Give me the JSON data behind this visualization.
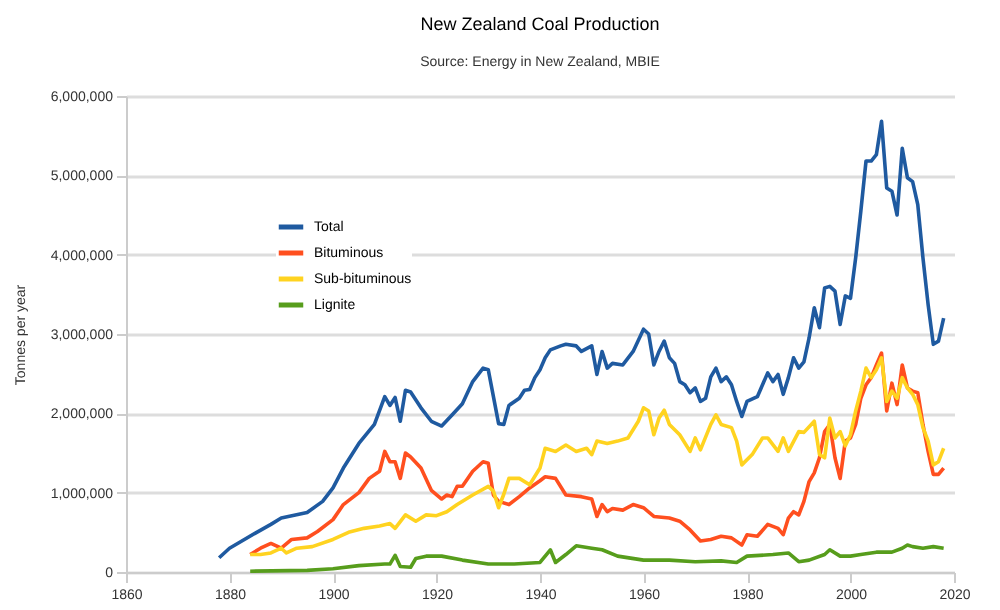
{
  "chart_data": {
    "type": "line",
    "title": "New Zealand Coal Production",
    "subtitle": "Source: Energy in New Zealand, MBIE",
    "ylabel": "Tonnes per year",
    "xlim": [
      1860,
      2020
    ],
    "xticks": [
      1860,
      1880,
      1900,
      1920,
      1940,
      1960,
      1980,
      2000,
      2020
    ],
    "ylim": [
      0,
      6000000
    ],
    "yticks": [
      {
        "value": 0,
        "label": "0"
      },
      {
        "value": 1000000,
        "label": "1,000,000"
      },
      {
        "value": 2000000,
        "label": "2,000,000"
      },
      {
        "value": 3000000,
        "label": "3,000,000"
      },
      {
        "value": 4000000,
        "label": "4,000,000"
      },
      {
        "value": 5000000,
        "label": "5,000,000"
      },
      {
        "value": 6000000,
        "label": "6,000,000"
      }
    ],
    "grid": "y",
    "legend": "left",
    "marker": "none",
    "line_style": "solid",
    "series": [
      {
        "name": "Total",
        "color": "#1f5aa0",
        "x": [
          1878,
          1880,
          1885,
          1888,
          1890,
          1895,
          1898,
          1900,
          1902,
          1905,
          1908,
          1910,
          1911,
          1912,
          1913,
          1914,
          1915,
          1917,
          1919,
          1921,
          1923,
          1925,
          1927,
          1929,
          1930,
          1932,
          1933,
          1934,
          1936,
          1937,
          1938,
          1939,
          1940,
          1941,
          1942,
          1944,
          1945,
          1947,
          1948,
          1950,
          1951,
          1952,
          1953,
          1954,
          1956,
          1958,
          1960,
          1961,
          1962,
          1963,
          1964,
          1965,
          1966,
          1967,
          1968,
          1969,
          1970,
          1971,
          1972,
          1973,
          1974,
          1975,
          1976,
          1977,
          1978,
          1979,
          1980,
          1982,
          1983,
          1984,
          1985,
          1986,
          1987,
          1988,
          1989,
          1990,
          1991,
          1992,
          1993,
          1994,
          1995,
          1996,
          1997,
          1998,
          1999,
          2000,
          2001,
          2002,
          2003,
          2004,
          2005,
          2006,
          2007,
          2008,
          2009,
          2010,
          2011,
          2012,
          2013,
          2014,
          2015,
          2016,
          2017,
          2018
        ],
        "values": [
          180000,
          300000,
          490000,
          600000,
          680000,
          750000,
          890000,
          1060000,
          1310000,
          1620000,
          1860000,
          2210000,
          2100000,
          2200000,
          1900000,
          2290000,
          2270000,
          2070000,
          1900000,
          1840000,
          1980000,
          2120000,
          2400000,
          2570000,
          2550000,
          1870000,
          1860000,
          2100000,
          2190000,
          2290000,
          2300000,
          2450000,
          2550000,
          2700000,
          2800000,
          2850000,
          2870000,
          2850000,
          2780000,
          2850000,
          2490000,
          2780000,
          2570000,
          2630000,
          2610000,
          2780000,
          3060000,
          3000000,
          2610000,
          2780000,
          2910000,
          2700000,
          2630000,
          2400000,
          2360000,
          2260000,
          2320000,
          2150000,
          2190000,
          2460000,
          2570000,
          2400000,
          2460000,
          2360000,
          2150000,
          1960000,
          2150000,
          2210000,
          2360000,
          2510000,
          2400000,
          2490000,
          2240000,
          2450000,
          2700000,
          2570000,
          2650000,
          2950000,
          3330000,
          3080000,
          3580000,
          3600000,
          3540000,
          3120000,
          3480000,
          3450000,
          3960000,
          4550000,
          5180000,
          5180000,
          5260000,
          5680000,
          4840000,
          4800000,
          4500000,
          5340000,
          4970000,
          4920000,
          4630000,
          3960000,
          3370000,
          2870000,
          2910000,
          3200000
        ]
      },
      {
        "name": "Bituminous",
        "color": "#ff4f1f",
        "x": [
          1884,
          1886,
          1888,
          1890,
          1892,
          1895,
          1897,
          1900,
          1902,
          1905,
          1907,
          1909,
          1910,
          1911,
          1912,
          1913,
          1914,
          1915,
          1917,
          1919,
          1921,
          1922,
          1923,
          1924,
          1925,
          1927,
          1929,
          1930,
          1931,
          1932,
          1934,
          1936,
          1938,
          1940,
          1941,
          1943,
          1945,
          1948,
          1950,
          1951,
          1952,
          1953,
          1954,
          1956,
          1958,
          1960,
          1962,
          1965,
          1967,
          1969,
          1971,
          1973,
          1975,
          1977,
          1979,
          1980,
          1982,
          1984,
          1986,
          1987,
          1988,
          1989,
          1990,
          1991,
          1992,
          1993,
          1994,
          1995,
          1996,
          1997,
          1998,
          1999,
          2000,
          2001,
          2002,
          2003,
          2004,
          2005,
          2006,
          2007,
          2008,
          2009,
          2010,
          2011,
          2012,
          2013,
          2014,
          2015,
          2016,
          2017,
          2018
        ],
        "values": [
          220000,
          300000,
          360000,
          300000,
          410000,
          430000,
          510000,
          660000,
          850000,
          1000000,
          1180000,
          1270000,
          1520000,
          1390000,
          1390000,
          1180000,
          1500000,
          1450000,
          1310000,
          1030000,
          920000,
          970000,
          950000,
          1080000,
          1080000,
          1270000,
          1390000,
          1370000,
          970000,
          890000,
          850000,
          950000,
          1060000,
          1150000,
          1200000,
          1180000,
          970000,
          950000,
          920000,
          700000,
          850000,
          760000,
          800000,
          780000,
          850000,
          810000,
          700000,
          680000,
          640000,
          530000,
          390000,
          410000,
          450000,
          430000,
          340000,
          470000,
          450000,
          600000,
          550000,
          470000,
          680000,
          760000,
          720000,
          890000,
          1140000,
          1250000,
          1440000,
          1770000,
          1860000,
          1440000,
          1180000,
          1650000,
          1690000,
          1860000,
          2190000,
          2360000,
          2450000,
          2610000,
          2760000,
          2030000,
          2380000,
          2110000,
          2610000,
          2320000,
          2280000,
          2260000,
          1860000,
          1520000,
          1230000,
          1230000,
          1310000
        ]
      },
      {
        "name": "Sub-bituminous",
        "color": "#ffd320",
        "x": [
          1884,
          1886,
          1888,
          1890,
          1891,
          1893,
          1896,
          1900,
          1903,
          1906,
          1909,
          1911,
          1912,
          1914,
          1916,
          1918,
          1920,
          1922,
          1924,
          1927,
          1930,
          1931,
          1932,
          1933,
          1934,
          1936,
          1938,
          1940,
          1941,
          1943,
          1945,
          1947,
          1949,
          1950,
          1951,
          1953,
          1955,
          1957,
          1959,
          1960,
          1961,
          1962,
          1963,
          1964,
          1965,
          1967,
          1969,
          1970,
          1971,
          1973,
          1974,
          1975,
          1977,
          1978,
          1979,
          1981,
          1983,
          1984,
          1986,
          1987,
          1988,
          1990,
          1991,
          1993,
          1994,
          1995,
          1996,
          1997,
          1998,
          1999,
          2000,
          2001,
          2002,
          2003,
          2004,
          2005,
          2006,
          2007,
          2008,
          2009,
          2010,
          2011,
          2012,
          2013,
          2014,
          2015,
          2016,
          2017,
          2018
        ],
        "values": [
          220000,
          220000,
          240000,
          300000,
          240000,
          300000,
          320000,
          410000,
          500000,
          550000,
          580000,
          610000,
          550000,
          720000,
          640000,
          720000,
          710000,
          760000,
          850000,
          970000,
          1080000,
          1020000,
          810000,
          980000,
          1180000,
          1180000,
          1100000,
          1310000,
          1560000,
          1520000,
          1600000,
          1520000,
          1560000,
          1480000,
          1650000,
          1620000,
          1650000,
          1690000,
          1900000,
          2070000,
          2030000,
          1730000,
          1940000,
          2040000,
          1860000,
          1730000,
          1520000,
          1690000,
          1540000,
          1860000,
          1980000,
          1860000,
          1820000,
          1650000,
          1350000,
          1480000,
          1690000,
          1690000,
          1520000,
          1690000,
          1520000,
          1770000,
          1760000,
          1900000,
          1480000,
          1440000,
          1940000,
          1690000,
          1770000,
          1590000,
          1730000,
          2030000,
          2280000,
          2570000,
          2450000,
          2550000,
          2700000,
          2150000,
          2280000,
          2190000,
          2450000,
          2320000,
          2240000,
          2110000,
          1820000,
          1650000,
          1350000,
          1390000,
          1560000
        ]
      },
      {
        "name": "Lignite",
        "color": "#579d1c",
        "x": [
          1884,
          1895,
          1900,
          1905,
          1910,
          1911,
          1912,
          1913,
          1915,
          1916,
          1918,
          1921,
          1925,
          1930,
          1935,
          1940,
          1942,
          1943,
          1945,
          1947,
          1950,
          1952,
          1955,
          1960,
          1965,
          1970,
          1975,
          1978,
          1980,
          1985,
          1988,
          1990,
          1992,
          1995,
          1996,
          1998,
          2000,
          2002,
          2005,
          2008,
          2010,
          2011,
          2012,
          2014,
          2016,
          2018
        ],
        "values": [
          10000,
          20000,
          40000,
          80000,
          100000,
          100000,
          210000,
          70000,
          60000,
          170000,
          200000,
          200000,
          150000,
          100000,
          100000,
          120000,
          280000,
          120000,
          220000,
          330000,
          300000,
          280000,
          200000,
          150000,
          150000,
          130000,
          140000,
          120000,
          200000,
          220000,
          240000,
          130000,
          150000,
          220000,
          280000,
          200000,
          200000,
          220000,
          250000,
          250000,
          300000,
          340000,
          320000,
          300000,
          320000,
          300000
        ]
      }
    ]
  }
}
